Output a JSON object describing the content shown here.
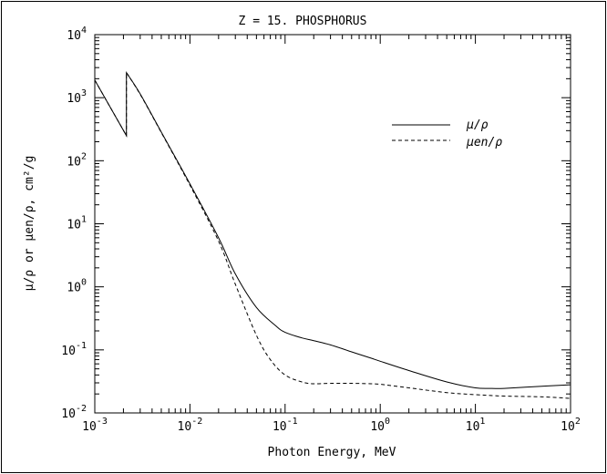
{
  "chart_data": {
    "type": "line",
    "title": "Z = 15.  PHOSPHORUS",
    "xlabel": "Photon Energy, MeV",
    "ylabel": "μ/ρ  or  μen/ρ,  cm²/g",
    "xscale": "log",
    "yscale": "log",
    "xlim": [
      0.001,
      100
    ],
    "ylim": [
      0.01,
      10000
    ],
    "x_ticks": [
      {
        "base": "10",
        "exp": "-3"
      },
      {
        "base": "10",
        "exp": "-2"
      },
      {
        "base": "10",
        "exp": "-1"
      },
      {
        "base": "10",
        "exp": "0"
      },
      {
        "base": "10",
        "exp": "1"
      },
      {
        "base": "10",
        "exp": "2"
      }
    ],
    "y_ticks": [
      {
        "base": "10",
        "exp": "-2"
      },
      {
        "base": "10",
        "exp": "-1"
      },
      {
        "base": "10",
        "exp": "0"
      },
      {
        "base": "10",
        "exp": "1"
      },
      {
        "base": "10",
        "exp": "2"
      },
      {
        "base": "10",
        "exp": "3"
      },
      {
        "base": "10",
        "exp": "4"
      }
    ],
    "legend_placement": "top-right",
    "grid": false,
    "series": [
      {
        "name": "μ/ρ",
        "style": "solid",
        "x": [
          0.001,
          0.00215,
          0.00215,
          0.003,
          0.005,
          0.01,
          0.02,
          0.03,
          0.05,
          0.08,
          0.1,
          0.15,
          0.2,
          0.3,
          0.5,
          0.8,
          1.0,
          2.0,
          5.0,
          10.0,
          15.0,
          20.0,
          50.0,
          100.0
        ],
        "y": [
          1900,
          250,
          2500,
          1150,
          285,
          43,
          6.0,
          1.6,
          0.47,
          0.24,
          0.19,
          0.155,
          0.14,
          0.12,
          0.093,
          0.074,
          0.066,
          0.047,
          0.031,
          0.025,
          0.0245,
          0.0245,
          0.0265,
          0.028
        ]
      },
      {
        "name": "μen/ρ",
        "style": "dashed",
        "x": [
          0.001,
          0.00215,
          0.00215,
          0.003,
          0.005,
          0.01,
          0.02,
          0.03,
          0.05,
          0.07,
          0.1,
          0.15,
          0.2,
          0.3,
          0.5,
          0.8,
          1.0,
          2.0,
          5.0,
          10.0,
          20.0,
          50.0,
          100.0
        ],
        "y": [
          1900,
          250,
          2500,
          1130,
          280,
          41,
          5.3,
          1.1,
          0.17,
          0.07,
          0.04,
          0.031,
          0.029,
          0.0295,
          0.0295,
          0.029,
          0.0285,
          0.025,
          0.021,
          0.0195,
          0.0185,
          0.018,
          0.017
        ]
      }
    ]
  }
}
